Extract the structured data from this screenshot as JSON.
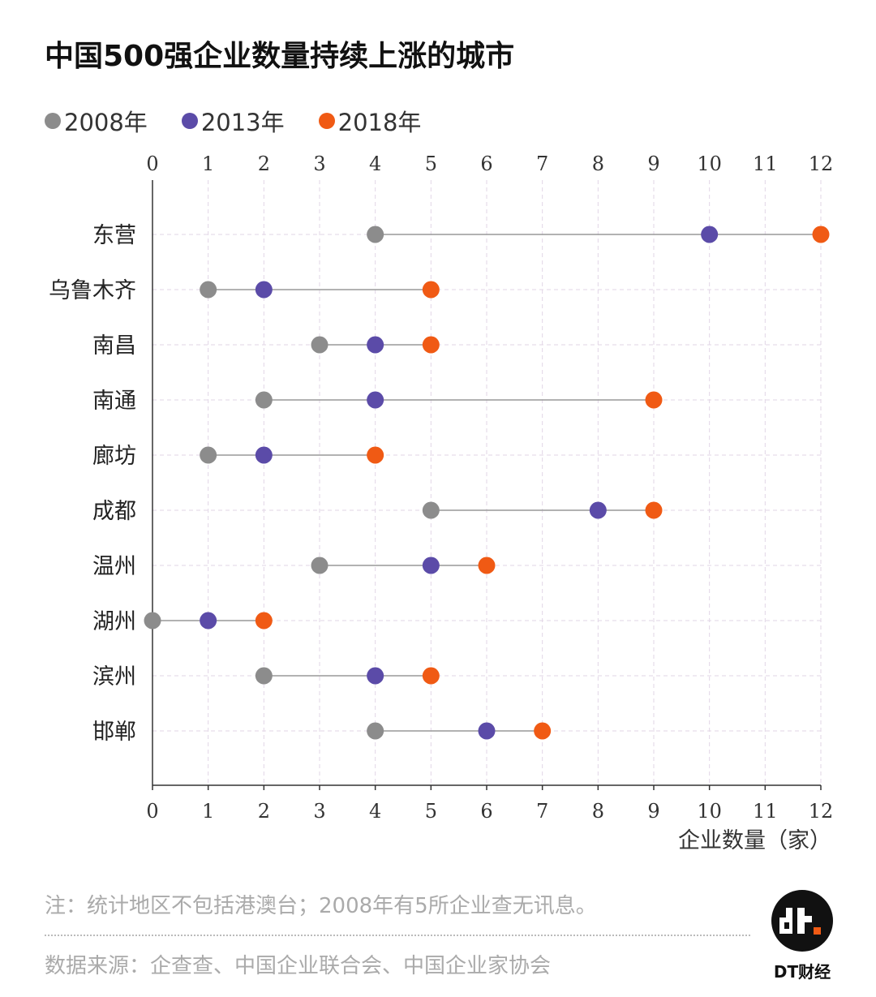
{
  "chart_data": {
    "type": "dot-plot",
    "title": "中国500强企业数量持续上涨的城市",
    "xlabel": "企业数量（家）",
    "ylabel": "",
    "xlim": [
      0,
      12
    ],
    "x_ticks": [
      "0",
      "1",
      "2",
      "3",
      "4",
      "5",
      "6",
      "7",
      "8",
      "9",
      "10",
      "11",
      "12"
    ],
    "grid": true,
    "legend_position": "top-left",
    "categories": [
      "东营",
      "乌鲁木齐",
      "南昌",
      "南通",
      "廊坊",
      "成都",
      "温州",
      "湖州",
      "滨州",
      "邯郸"
    ],
    "series": [
      {
        "name": "2008年",
        "color": "#8c8c8c",
        "values": [
          4,
          1,
          3,
          2,
          1,
          5,
          3,
          0,
          2,
          4
        ]
      },
      {
        "name": "2013年",
        "color": "#5b4ba8",
        "values": [
          10,
          2,
          4,
          4,
          2,
          8,
          5,
          1,
          4,
          6
        ]
      },
      {
        "name": "2018年",
        "color": "#f05a14",
        "values": [
          12,
          5,
          5,
          9,
          4,
          9,
          6,
          2,
          5,
          7
        ]
      }
    ]
  },
  "footer": {
    "note": "注：统计地区不包括港澳台；2008年有5所企业查无讯息。",
    "source": "数据来源：企查查、中国企业联合会、中国企业家协会",
    "brand": "DT财经"
  }
}
